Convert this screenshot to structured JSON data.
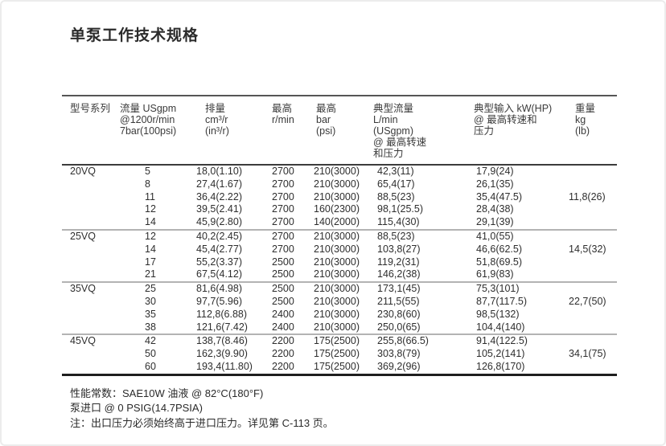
{
  "page": {
    "title": "单泵工作技术规格"
  },
  "table": {
    "headers": [
      {
        "id": "model",
        "lines": [
          "型号系列"
        ]
      },
      {
        "id": "flow",
        "lines": [
          "流量 USgpm",
          "@1200r/min",
          "7bar(100psi)"
        ]
      },
      {
        "id": "displacement",
        "lines": [
          "排量",
          "cm³/r",
          "(in³/r)"
        ]
      },
      {
        "id": "max-rpm",
        "lines": [
          "最高",
          "r/min"
        ]
      },
      {
        "id": "max-bar",
        "lines": [
          "最高",
          "bar",
          "(psi)"
        ]
      },
      {
        "id": "typical-flow",
        "lines": [
          "典型流量",
          "L/min",
          "(USgpm)",
          "@ 最高转速",
          "和压力"
        ]
      },
      {
        "id": "typical-input",
        "lines": [
          "典型输入 kW(HP)",
          "@ 最高转速和",
          "压力"
        ]
      },
      {
        "id": "weight",
        "lines": [
          "重量",
          "kg",
          "(lb)"
        ]
      }
    ],
    "groups": [
      {
        "model": "20VQ",
        "weight": "11,8(26)",
        "rows": [
          [
            "5",
            "18,0(1.10)",
            "2700",
            "210(3000)",
            "42,3(11)",
            "17,9(24)"
          ],
          [
            "8",
            "27,4(1.67)",
            "2700",
            "210(3000)",
            "65,4(17)",
            "26,1(35)"
          ],
          [
            "11",
            "36,4(2.22)",
            "2700",
            "210(3000)",
            "88,5(23)",
            "35,4(47.5)"
          ],
          [
            "12",
            "39,5(2.41)",
            "2700",
            "160(2300)",
            "98,1(25.5)",
            "28,4(38)"
          ],
          [
            "14",
            "45,9(2.80)",
            "2700",
            "140(2000)",
            "115,4(30)",
            "29,1(39)"
          ]
        ]
      },
      {
        "model": "25VQ",
        "weight": "14,5(32)",
        "rows": [
          [
            "12",
            "40,2(2.45)",
            "2700",
            "210(3000)",
            "88,5(23)",
            "41,0(55)"
          ],
          [
            "14",
            "45,4(2.77)",
            "2700",
            "210(3000)",
            "103,8(27)",
            "46,6(62.5)"
          ],
          [
            "17",
            "55,2(3.37)",
            "2500",
            "210(3000)",
            "119,2(31)",
            "51,8(69.5)"
          ],
          [
            "21",
            "67,5(4.12)",
            "2500",
            "210(3000)",
            "146,2(38)",
            "61,9(83)"
          ]
        ]
      },
      {
        "model": "35VQ",
        "weight": "22,7(50)",
        "rows": [
          [
            "25",
            "81,6(4.98)",
            "2500",
            "210(3000)",
            "173,1(45)",
            "75,3(101)"
          ],
          [
            "30",
            "97,7(5.96)",
            "2500",
            "210(3000)",
            "211,5(55)",
            "87,7(117.5)"
          ],
          [
            "35",
            "112,8(6.88)",
            "2400",
            "210(3000)",
            "230,8(60)",
            "98,5(132)"
          ],
          [
            "38",
            "121,6(7.42)",
            "2400",
            "210(3000)",
            "250,0(65)",
            "104,4(140)"
          ]
        ]
      },
      {
        "model": "45VQ",
        "weight": "34,1(75)",
        "rows": [
          [
            "42",
            "138,7(8.46)",
            "2200",
            "175(2500)",
            "255,8(66.5)",
            "91,4(122.5)"
          ],
          [
            "50",
            "162,3(9.90)",
            "2200",
            "175(2500)",
            "303,8(79)",
            "105,2(141)"
          ],
          [
            "60",
            "193,4(11.80)",
            "2200",
            "175(2500)",
            "369,2(96)",
            "126,8(170)"
          ]
        ]
      }
    ]
  },
  "notes": [
    "性能常数：SAE10W 油液 @ 82°C(180°F)",
    "泵进口 @ 0 PSIG(14.7PSIA)",
    "注：出口压力必须始终高于进口压力。详见第 C-113 页。"
  ]
}
